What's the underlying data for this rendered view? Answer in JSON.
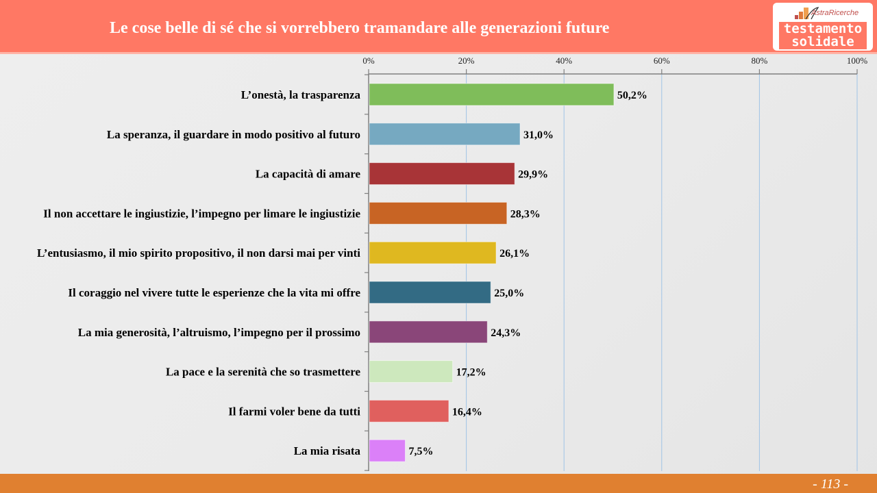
{
  "header": {
    "title": "Le cose belle di sé che si vorrebbero tramandare alle generazioni future",
    "logo_brand": "AstraRicerche",
    "logo_line1": "testamento",
    "logo_line2": "solidale"
  },
  "footer": {
    "page_number": "- 113 -"
  },
  "colors": {
    "header_bg": "#ff7864",
    "footer_bg": "#e08030",
    "gridline": "#9fc3e6"
  },
  "chart_data": {
    "type": "bar",
    "orientation": "horizontal",
    "title": "Le cose belle di sé che si vorrebbero tramandare alle generazioni future",
    "xlabel": "",
    "ylabel": "",
    "xlim": [
      0,
      100
    ],
    "grid": true,
    "x_tick_labels": [
      "0%",
      "20%",
      "40%",
      "60%",
      "80%",
      "100%"
    ],
    "x_ticks": [
      0,
      20,
      40,
      60,
      80,
      100
    ],
    "categories": [
      "L’onestà, la trasparenza",
      "La speranza, il guardare in modo positivo al futuro",
      "La capacità di amare",
      "Il non accettare le ingiustizie, l’impegno per limare le ingiustizie",
      "L’entusiasmo, il mio spirito propositivo, il non darsi mai per vinti",
      "Il coraggio nel vivere tutte le esperienze che la vita mi offre",
      "La mia generosità, l’altruismo, l’impegno per il prossimo",
      "La pace e la serenità che so trasmettere",
      "Il farmi voler bene da tutti",
      "La mia risata"
    ],
    "values": [
      50.2,
      31.0,
      29.9,
      28.3,
      26.1,
      25.0,
      24.3,
      17.2,
      16.4,
      7.5
    ],
    "value_labels": [
      "50,2%",
      "31,0%",
      "29,9%",
      "28,3%",
      "26,1%",
      "25,0%",
      "24,3%",
      "17,2%",
      "16,4%",
      "7,5%"
    ],
    "bar_colors": [
      "#7fbd5a",
      "#76a9c1",
      "#a83437",
      "#c86424",
      "#dfb820",
      "#336b84",
      "#8a4679",
      "#cde8bd",
      "#e0605e",
      "#db80f8"
    ]
  }
}
